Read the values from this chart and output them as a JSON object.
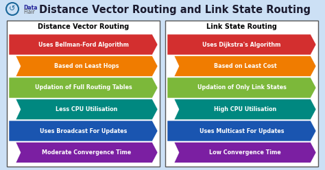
{
  "title": "Distance Vector Routing and Link State Routing",
  "bg_color": "#cce0f5",
  "title_color": "#1a1a2e",
  "left_header": "Distance Vector Routing",
  "right_header": "Link State Routing",
  "left_items": [
    "Uses Bellman-Ford Algorithm",
    "Based on Least Hops",
    "Updation of Full Routing Tables",
    "Less CPU Utilisation",
    "Uses Broadcast For Updates",
    "Moderate Convergence Time"
  ],
  "right_items": [
    "Uses Dijkstra's Algorithm",
    "Based on Least Cost",
    "Updation of Only Link States",
    "High CPU Utilisation",
    "Uses Multicast For Updates",
    "Low Convergence Time"
  ],
  "item_colors": [
    "#d32f2f",
    "#f07c00",
    "#7cb83a",
    "#008880",
    "#1a55b0",
    "#7b1fa2"
  ],
  "box_border_color": "#555555",
  "header_font_size": 7.0,
  "item_font_size": 5.8,
  "title_font_size": 10.5,
  "logo_text": "Data\nFlair",
  "logo_color": "#1a6699",
  "logo_circle_color": "#1a6699"
}
